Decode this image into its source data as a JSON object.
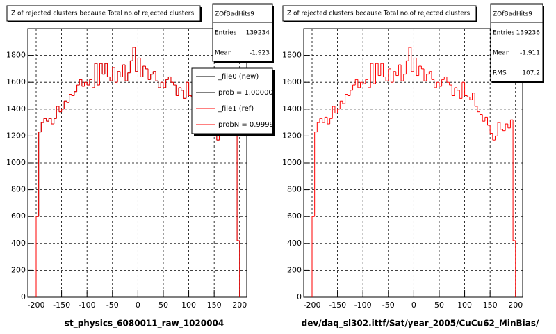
{
  "chart_data": [
    {
      "type": "histogram",
      "title": "Z of rejected clusters  because Total no.of rejected clusters",
      "xlabel": "st_physics_6080011_raw_1020004",
      "bins": [
        -200,
        -195,
        -190,
        -185,
        -180,
        -175,
        -170,
        -165,
        -160,
        -155,
        -150,
        -145,
        -140,
        -135,
        -130,
        -125,
        -120,
        -115,
        -110,
        -105,
        -100,
        -95,
        -90,
        -85,
        -80,
        -75,
        -70,
        -65,
        -60,
        -55,
        -50,
        -45,
        -40,
        -35,
        -30,
        -25,
        -20,
        -15,
        -10,
        -5,
        0,
        5,
        10,
        15,
        20,
        25,
        30,
        35,
        40,
        45,
        50,
        55,
        60,
        65,
        70,
        75,
        80,
        85,
        90,
        95,
        100,
        105,
        110,
        115,
        120,
        125,
        130,
        135,
        140,
        145,
        150,
        155,
        160,
        165,
        170,
        175,
        180,
        185,
        190,
        195,
        200
      ],
      "series": [
        {
          "name": "_file0 (new)",
          "color": "#000000",
          "values": [
            600,
            1230,
            1300,
            1330,
            1310,
            1330,
            1290,
            1330,
            1420,
            1380,
            1400,
            1460,
            1450,
            1510,
            1500,
            1530,
            1580,
            1620,
            1570,
            1600,
            1580,
            1620,
            1560,
            1740,
            1580,
            1740,
            1660,
            1740,
            1640,
            1610,
            1710,
            1600,
            1680,
            1640,
            1730,
            1610,
            1670,
            1760,
            1860,
            1680,
            1780,
            1640,
            1720,
            1700,
            1620,
            1660,
            1680,
            1610,
            1560,
            1600,
            1560,
            1620,
            1640,
            1600,
            1580,
            1500,
            1560,
            1540,
            1480,
            1600,
            1500,
            1490,
            1460,
            1530,
            1420,
            1380,
            1360,
            1300,
            1340,
            1280,
            1230,
            1170,
            1200,
            1300,
            1260,
            1240,
            1280,
            1260,
            1320,
            420
          ]
        },
        {
          "name": "_file1 (ref)",
          "color": "#ff0000",
          "values": [
            600,
            1230,
            1300,
            1330,
            1310,
            1330,
            1290,
            1330,
            1420,
            1380,
            1400,
            1460,
            1450,
            1510,
            1500,
            1530,
            1580,
            1620,
            1570,
            1600,
            1580,
            1620,
            1560,
            1740,
            1580,
            1740,
            1660,
            1740,
            1640,
            1610,
            1710,
            1600,
            1680,
            1640,
            1730,
            1610,
            1670,
            1760,
            1860,
            1680,
            1780,
            1640,
            1720,
            1700,
            1620,
            1660,
            1680,
            1610,
            1560,
            1600,
            1560,
            1620,
            1640,
            1600,
            1580,
            1500,
            1560,
            1540,
            1480,
            1600,
            1500,
            1490,
            1460,
            1530,
            1420,
            1380,
            1360,
            1300,
            1340,
            1280,
            1230,
            1170,
            1200,
            1300,
            1260,
            1240,
            1280,
            1260,
            1320,
            420
          ]
        }
      ],
      "legend_notes": [
        {
          "text": "prob = 1.000000",
          "color": "#000000"
        },
        {
          "text": "probN = 0.99999",
          "color": "#ff0000"
        }
      ],
      "stats": {
        "title": "ZOfBadHits9",
        "rows": [
          {
            "label": "Entries",
            "value": 139234
          },
          {
            "label": "Mean",
            "value": -1.923
          }
        ]
      },
      "xlim": [
        -216.4,
        214
      ],
      "ylim": [
        0,
        2000
      ],
      "xticks": [
        -200,
        -150,
        -100,
        -50,
        0,
        50,
        100,
        150,
        200
      ],
      "yticks": [
        0,
        200,
        400,
        600,
        800,
        1000,
        1200,
        1400,
        1600,
        1800
      ],
      "grid": true
    },
    {
      "type": "histogram",
      "title": "Z of rejected clusters  because Total no.of rejected clusters",
      "xlabel": "dev/daq_sl302.ittf/Sat/year_2005/CuCu62_MinBias/",
      "bins": [
        -200,
        -195,
        -190,
        -185,
        -180,
        -175,
        -170,
        -165,
        -160,
        -155,
        -150,
        -145,
        -140,
        -135,
        -130,
        -125,
        -120,
        -115,
        -110,
        -105,
        -100,
        -95,
        -90,
        -85,
        -80,
        -75,
        -70,
        -65,
        -60,
        -55,
        -50,
        -45,
        -40,
        -35,
        -30,
        -25,
        -20,
        -15,
        -10,
        -5,
        0,
        5,
        10,
        15,
        20,
        25,
        30,
        35,
        40,
        45,
        50,
        55,
        60,
        65,
        70,
        75,
        80,
        85,
        90,
        95,
        100,
        105,
        110,
        115,
        120,
        125,
        130,
        135,
        140,
        145,
        150,
        155,
        160,
        165,
        170,
        175,
        180,
        185,
        190,
        195,
        200
      ],
      "series": [
        {
          "name": "ZOfBadHits9",
          "color": "#ff0000",
          "values": [
            600,
            1230,
            1300,
            1330,
            1300,
            1340,
            1290,
            1330,
            1420,
            1370,
            1400,
            1460,
            1440,
            1510,
            1500,
            1540,
            1580,
            1620,
            1560,
            1600,
            1590,
            1620,
            1560,
            1740,
            1590,
            1740,
            1650,
            1740,
            1640,
            1610,
            1700,
            1600,
            1680,
            1650,
            1730,
            1610,
            1660,
            1760,
            1860,
            1680,
            1780,
            1650,
            1720,
            1700,
            1610,
            1660,
            1680,
            1620,
            1560,
            1600,
            1570,
            1620,
            1640,
            1600,
            1580,
            1500,
            1560,
            1540,
            1480,
            1600,
            1500,
            1490,
            1470,
            1520,
            1420,
            1380,
            1360,
            1310,
            1340,
            1280,
            1220,
            1170,
            1200,
            1300,
            1250,
            1240,
            1290,
            1260,
            1320,
            420
          ]
        }
      ],
      "stats": {
        "title": "ZOfBadHits9",
        "rows": [
          {
            "label": "Entries",
            "value": 139236
          },
          {
            "label": "Mean",
            "value": -1.911
          },
          {
            "label": "RMS",
            "value": 107.2
          }
        ]
      },
      "xlim": [
        -216.4,
        214
      ],
      "ylim": [
        0,
        2000
      ],
      "xticks": [
        -200,
        -150,
        -100,
        -50,
        0,
        50,
        100,
        150,
        200
      ],
      "yticks": [
        0,
        200,
        400,
        600,
        800,
        1000,
        1200,
        1400,
        1600,
        1800
      ],
      "grid": true
    }
  ]
}
